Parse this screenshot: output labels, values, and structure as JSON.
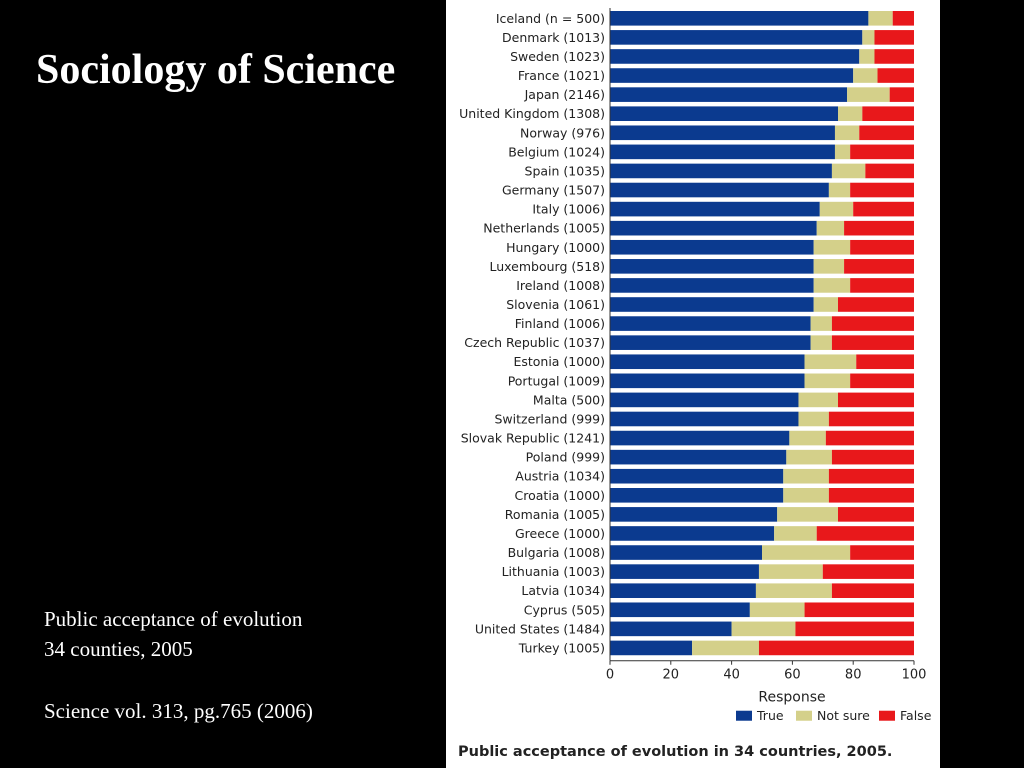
{
  "slide": {
    "title": "Sociology of Science",
    "caption_line1": "Public acceptance of evolution",
    "caption_line2": "34 counties, 2005",
    "citation": "Science vol. 313, pg.765 (2006)"
  },
  "figure_caption": "Public acceptance of evolution in 34 countries, 2005.",
  "chart_data": {
    "type": "bar",
    "orientation": "horizontal",
    "stacked": true,
    "categories": [
      "Iceland (n = 500)",
      "Denmark (1013)",
      "Sweden (1023)",
      "France (1021)",
      "Japan (2146)",
      "United Kingdom (1308)",
      "Norway (976)",
      "Belgium (1024)",
      "Spain (1035)",
      "Germany (1507)",
      "Italy (1006)",
      "Netherlands (1005)",
      "Hungary (1000)",
      "Luxembourg (518)",
      "Ireland (1008)",
      "Slovenia (1061)",
      "Finland (1006)",
      "Czech Republic (1037)",
      "Estonia (1000)",
      "Portugal (1009)",
      "Malta (500)",
      "Switzerland (999)",
      "Slovak Republic (1241)",
      "Poland (999)",
      "Austria (1034)",
      "Croatia (1000)",
      "Romania (1005)",
      "Greece (1000)",
      "Bulgaria (1008)",
      "Lithuania (1003)",
      "Latvia (1034)",
      "Cyprus (505)",
      "United States (1484)",
      "Turkey (1005)"
    ],
    "series": [
      {
        "name": "True",
        "color": "#0b3a8f",
        "values": [
          85,
          83,
          82,
          80,
          78,
          75,
          74,
          74,
          73,
          72,
          69,
          68,
          67,
          67,
          67,
          67,
          66,
          66,
          64,
          64,
          62,
          62,
          59,
          58,
          57,
          57,
          55,
          54,
          50,
          49,
          48,
          46,
          40,
          27
        ]
      },
      {
        "name": "Not sure",
        "color": "#d4d08a",
        "values": [
          8,
          4,
          5,
          8,
          14,
          8,
          8,
          5,
          11,
          7,
          11,
          9,
          12,
          10,
          12,
          8,
          7,
          7,
          17,
          15,
          13,
          10,
          12,
          15,
          15,
          15,
          20,
          14,
          29,
          21,
          25,
          18,
          21,
          22
        ]
      },
      {
        "name": "False",
        "color": "#e8181b",
        "values": [
          7,
          13,
          13,
          12,
          8,
          17,
          18,
          21,
          16,
          21,
          20,
          23,
          21,
          23,
          21,
          25,
          27,
          27,
          19,
          21,
          25,
          28,
          29,
          27,
          28,
          28,
          25,
          32,
          21,
          30,
          27,
          36,
          39,
          51
        ]
      }
    ],
    "xlabel": "Response",
    "xlim": [
      0,
      100
    ],
    "xticks": [
      0,
      20,
      40,
      60,
      80,
      100
    ],
    "legend_position": "bottom-right",
    "grid": false
  }
}
